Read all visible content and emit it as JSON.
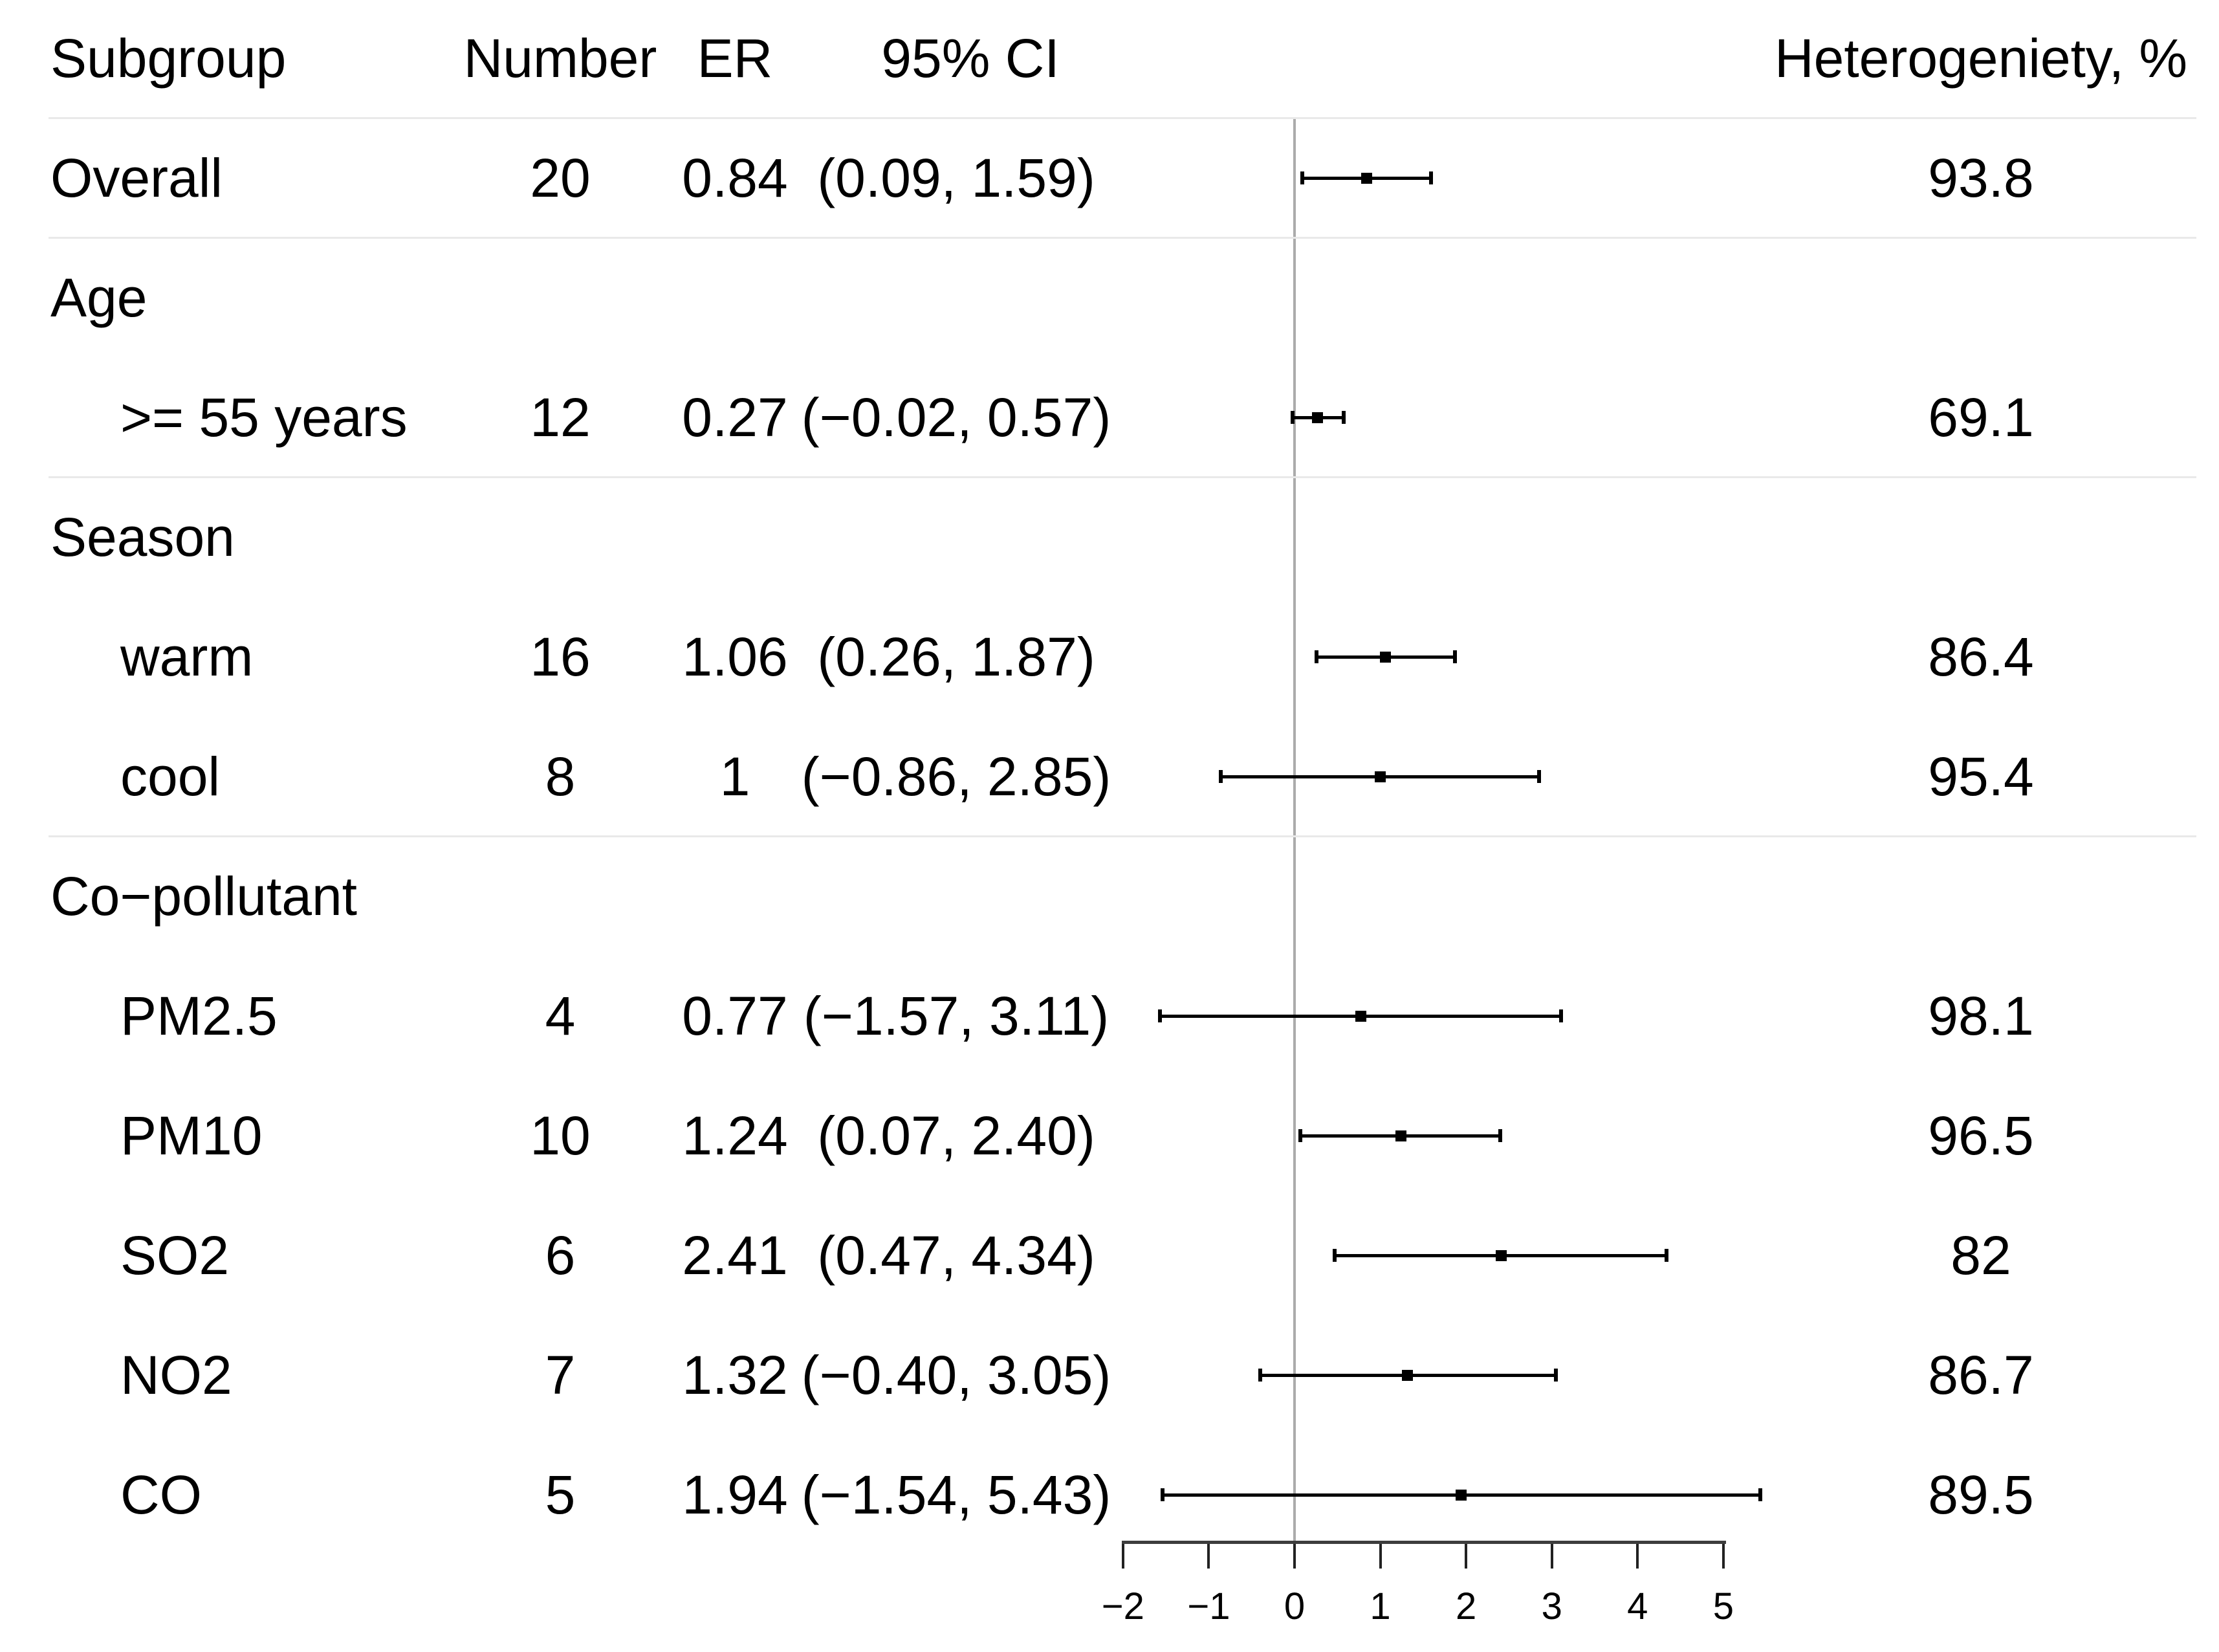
{
  "chart_data": {
    "type": "scatter",
    "variant": "forest-plot",
    "columns": {
      "subgroup": "Subgroup",
      "number": "Number",
      "er": "ER",
      "ci": "95% CI",
      "heterogeneity": "Heterogeniety, %"
    },
    "x_axis": {
      "range": [
        -2,
        5
      ],
      "ticks": [
        -2,
        -1,
        0,
        1,
        2,
        3,
        4,
        5
      ],
      "tick_labels": [
        "−2",
        "−1",
        "0",
        "1",
        "2",
        "3",
        "4",
        "5"
      ],
      "reference_line": 0
    },
    "rows": [
      {
        "kind": "data",
        "label": "Overall",
        "indent": false,
        "number": "20",
        "er": "0.84",
        "ci": "(0.09, 1.59)",
        "heterogeneity": "93.8",
        "estimate": 0.84,
        "ci_low": 0.09,
        "ci_high": 1.59,
        "rule_below": true
      },
      {
        "kind": "section",
        "label": "Age",
        "rule_below": false
      },
      {
        "kind": "data",
        "label": ">= 55 years",
        "indent": true,
        "number": "12",
        "er": "0.27",
        "ci": "(−0.02, 0.57)",
        "heterogeneity": "69.1",
        "estimate": 0.27,
        "ci_low": -0.02,
        "ci_high": 0.57,
        "rule_below": true
      },
      {
        "kind": "section",
        "label": "Season",
        "rule_below": false
      },
      {
        "kind": "data",
        "label": "warm",
        "indent": true,
        "number": "16",
        "er": "1.06",
        "ci": "(0.26, 1.87)",
        "heterogeneity": "86.4",
        "estimate": 1.06,
        "ci_low": 0.26,
        "ci_high": 1.87,
        "rule_below": false
      },
      {
        "kind": "data",
        "label": "cool",
        "indent": true,
        "number": "8",
        "er": "1",
        "ci": "(−0.86, 2.85)",
        "heterogeneity": "95.4",
        "estimate": 1.0,
        "ci_low": -0.86,
        "ci_high": 2.85,
        "rule_below": true
      },
      {
        "kind": "section",
        "label": "Co−pollutant",
        "rule_below": false
      },
      {
        "kind": "data",
        "label": "PM2.5",
        "indent": true,
        "number": "4",
        "er": "0.77",
        "ci": "(−1.57, 3.11)",
        "heterogeneity": "98.1",
        "estimate": 0.77,
        "ci_low": -1.57,
        "ci_high": 3.11,
        "rule_below": false
      },
      {
        "kind": "data",
        "label": "PM10",
        "indent": true,
        "number": "10",
        "er": "1.24",
        "ci": "(0.07, 2.40)",
        "heterogeneity": "96.5",
        "estimate": 1.24,
        "ci_low": 0.07,
        "ci_high": 2.4,
        "rule_below": false
      },
      {
        "kind": "data",
        "label": "SO2",
        "indent": true,
        "number": "6",
        "er": "2.41",
        "ci": "(0.47, 4.34)",
        "heterogeneity": "82",
        "estimate": 2.41,
        "ci_low": 0.47,
        "ci_high": 4.34,
        "rule_below": false
      },
      {
        "kind": "data",
        "label": "NO2",
        "indent": true,
        "number": "7",
        "er": "1.32",
        "ci": "(−0.40, 3.05)",
        "heterogeneity": "86.7",
        "estimate": 1.32,
        "ci_low": -0.4,
        "ci_high": 3.05,
        "rule_below": false
      },
      {
        "kind": "data",
        "label": "CO",
        "indent": true,
        "number": "5",
        "er": "1.94",
        "ci": "(−1.54, 5.43)",
        "heterogeneity": "89.5",
        "estimate": 1.94,
        "ci_low": -1.54,
        "ci_high": 5.43,
        "rule_below": false
      }
    ],
    "colors": {
      "marker": "#000000",
      "reference_line": "#ababab",
      "axis": "#3d3d3d",
      "separator": "#e9e9e9",
      "text": "#000000"
    }
  }
}
